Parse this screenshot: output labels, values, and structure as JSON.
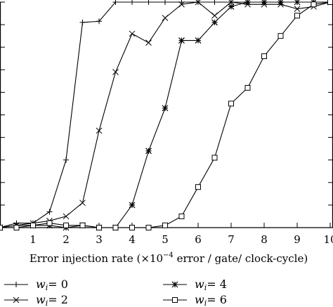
{
  "chart_data": {
    "type": "line",
    "xlabel_prefix": "Error injection rate (",
    "xlabel_mult": "×10",
    "xlabel_exp": "−4",
    "xlabel_suffix": " error / gate/ clock-cycle)",
    "xlim": [
      0,
      10
    ],
    "ylim": [
      0,
      1
    ],
    "x_ticks": [
      "1",
      "2",
      "3",
      "4",
      "5",
      "6",
      "7",
      "8",
      "9",
      "10"
    ],
    "x_tick_values": [
      1,
      2,
      3,
      4,
      5,
      6,
      7,
      8,
      9,
      10
    ],
    "y_tick_values": [
      0,
      0.1,
      0.2,
      0.3,
      0.4,
      0.5,
      0.6,
      0.7,
      0.8,
      0.9,
      1.0
    ],
    "grid": false,
    "legend_position": "bottom",
    "series": [
      {
        "name_var": "w",
        "name_sub": "i",
        "name_value": "= 0",
        "marker": "plus",
        "x": [
          0,
          0.5,
          1.0,
          1.5,
          2.0,
          2.5,
          3.0,
          3.5,
          4.0,
          4.5,
          5.0,
          5.5,
          6.0,
          6.5,
          7.0,
          7.5,
          8.0,
          8.5,
          9.0,
          9.5,
          10.0
        ],
        "values": [
          0.0,
          0.02,
          0.02,
          0.07,
          0.3,
          0.91,
          0.915,
          1.0,
          1.0,
          1.0,
          1.0,
          1.0,
          1.0,
          1.0,
          1.0,
          1.0,
          1.0,
          1.0,
          1.0,
          1.0,
          1.0
        ]
      },
      {
        "name_var": "w",
        "name_sub": "i",
        "name_value": "= 2",
        "marker": "x",
        "x": [
          0,
          0.5,
          1.0,
          1.5,
          2.0,
          2.5,
          3.0,
          3.5,
          4.0,
          4.5,
          5.0,
          5.5,
          6.0,
          6.5,
          7.0,
          7.5,
          8.0,
          8.5,
          9.0,
          9.5,
          10.0
        ],
        "values": [
          0.0,
          0.01,
          0.02,
          0.03,
          0.05,
          0.11,
          0.43,
          0.69,
          0.86,
          0.82,
          0.93,
          0.99,
          1.0,
          0.94,
          1.0,
          0.99,
          0.99,
          0.99,
          0.97,
          0.98,
          1.0
        ]
      },
      {
        "name_var": "w",
        "name_sub": "i",
        "name_value": "= 4",
        "marker": "star",
        "x": [
          0,
          0.5,
          1.0,
          1.5,
          2.0,
          2.5,
          3.0,
          3.5,
          4.0,
          4.5,
          5.0,
          5.5,
          6.0,
          6.5,
          7.0,
          7.5,
          8.0,
          8.5,
          9.0,
          9.5,
          10.0
        ],
        "values": [
          0.0,
          0.01,
          0.01,
          0.01,
          0.0,
          0.01,
          0.0,
          0.0,
          0.1,
          0.34,
          0.53,
          0.83,
          0.83,
          0.91,
          0.98,
          1.0,
          1.0,
          1.0,
          1.0,
          1.0,
          1.0
        ]
      },
      {
        "name_var": "w",
        "name_sub": "i",
        "name_value": "= 6",
        "marker": "square",
        "x": [
          0,
          0.5,
          1.0,
          1.5,
          2.0,
          2.5,
          3.0,
          3.5,
          4.0,
          4.5,
          5.0,
          5.5,
          6.0,
          6.5,
          7.0,
          7.5,
          8.0,
          8.5,
          9.0,
          9.5,
          10.0
        ],
        "values": [
          0.0,
          0.0,
          0.01,
          0.02,
          0.01,
          0.01,
          0.0,
          0.0,
          0.0,
          0.0,
          0.01,
          0.05,
          0.18,
          0.31,
          0.55,
          0.62,
          0.76,
          0.85,
          0.94,
          0.99,
          1.0
        ]
      }
    ]
  }
}
